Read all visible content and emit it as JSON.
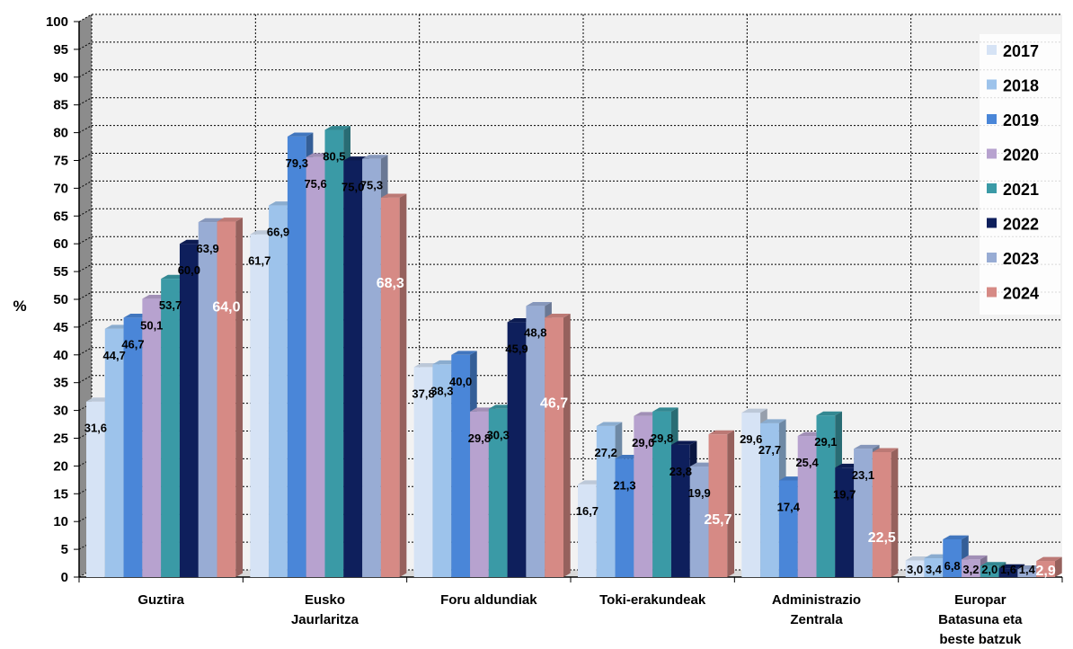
{
  "chart_data": {
    "type": "bar",
    "categories": [
      [
        "Guztira"
      ],
      [
        "Eusko",
        "Jaurlaritza"
      ],
      [
        "Foru aldundiak"
      ],
      [
        "Toki-erakundeak"
      ],
      [
        "Administrazio",
        "Zentrala"
      ],
      [
        "Europar",
        "Batasuna eta",
        "beste batzuk"
      ]
    ],
    "ylabel": "%",
    "ylim": [
      0,
      100
    ],
    "yticks": [
      0,
      5,
      10,
      15,
      20,
      25,
      30,
      35,
      40,
      45,
      50,
      55,
      60,
      65,
      70,
      75,
      80,
      85,
      90,
      95,
      100
    ],
    "grid": true,
    "legend_position": "right",
    "series": [
      {
        "name": "2017",
        "color": "#d6e3f5",
        "values": [
          31.6,
          61.7,
          37.8,
          16.7,
          29.6,
          3.0
        ],
        "labels": [
          "31,6",
          "61,7",
          "37,8",
          "16,7",
          "29,6",
          "3,0"
        ]
      },
      {
        "name": "2018",
        "color": "#9dc3eb",
        "values": [
          44.7,
          66.9,
          38.3,
          27.2,
          27.7,
          3.4
        ],
        "labels": [
          "44,7",
          "66,9",
          "38,3",
          "27,2",
          "27,7",
          "3,4"
        ]
      },
      {
        "name": "2019",
        "color": "#4a86d8",
        "values": [
          46.7,
          79.3,
          40.0,
          21.3,
          17.4,
          6.8
        ],
        "labels": [
          "46,7",
          "79,3",
          "40,0",
          "21,3",
          "17,4",
          "6,8"
        ]
      },
      {
        "name": "2020",
        "color": "#b7a2cf",
        "values": [
          50.1,
          75.6,
          29.8,
          29.0,
          25.4,
          3.2
        ],
        "labels": [
          "50,1",
          "75,6",
          "29,8",
          "29,0",
          "25,4",
          "3,2"
        ]
      },
      {
        "name": "2021",
        "color": "#3a9aa6",
        "values": [
          53.7,
          80.5,
          30.3,
          29.8,
          29.1,
          2.0
        ],
        "labels": [
          "53,7",
          "80,5",
          "30,3",
          "29,8",
          "29,1",
          "2,0"
        ]
      },
      {
        "name": "2022",
        "color": "#0e1f5c",
        "values": [
          60.0,
          75.0,
          45.9,
          23.8,
          19.7,
          1.6
        ],
        "labels": [
          "60,0",
          "75,0",
          "45,9",
          "23,8",
          "19,7",
          "1,6"
        ]
      },
      {
        "name": "2023",
        "color": "#98acd4",
        "values": [
          63.9,
          75.3,
          48.8,
          19.9,
          23.1,
          1.4
        ],
        "labels": [
          "63,9",
          "75,3",
          "48,8",
          "19,9",
          "23,1",
          "1,4"
        ]
      },
      {
        "name": "2024",
        "color": "#d68a85",
        "values": [
          64.0,
          68.3,
          46.7,
          25.7,
          22.5,
          2.9
        ],
        "labels": [
          "64,0",
          "68,3",
          "46,7",
          "25,7",
          "22,5",
          "2,9"
        ]
      }
    ]
  }
}
